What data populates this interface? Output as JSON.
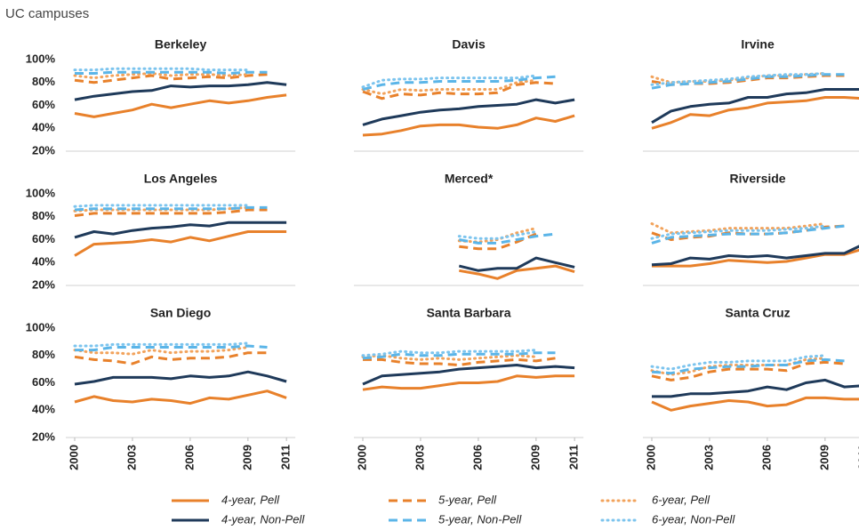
{
  "title": "UC campuses",
  "chart_data": {
    "type": "line",
    "x": [
      2000,
      2001,
      2002,
      2003,
      2004,
      2005,
      2006,
      2007,
      2008,
      2009,
      2010,
      2011
    ],
    "xticks": [
      2000,
      2003,
      2006,
      2009,
      2011
    ],
    "ylim": [
      20,
      100
    ],
    "yticks": [
      {
        "value": 20,
        "label": "20%"
      },
      {
        "value": 40,
        "label": "40%"
      },
      {
        "value": 60,
        "label": "60%"
      },
      {
        "value": 80,
        "label": "80%"
      },
      {
        "value": 100,
        "label": "100%"
      }
    ],
    "series": [
      {
        "name": "4-year, Pell",
        "color": "#e8812b",
        "dash": "solid"
      },
      {
        "name": "5-year, Pell",
        "color": "#e8812b",
        "dash": "dashed"
      },
      {
        "name": "6-year, Pell",
        "color": "#f2a35c",
        "dash": "dotted"
      },
      {
        "name": "4-year, Non-Pell",
        "color": "#1f3a5a",
        "dash": "solid"
      },
      {
        "name": "5-year, Non-Pell",
        "color": "#5bb5e8",
        "dash": "dashed"
      },
      {
        "name": "6-year, Non-Pell",
        "color": "#7cc4ee",
        "dash": "dotted"
      }
    ],
    "panels": [
      {
        "title": "Berkeley",
        "series_values": [
          [
            53,
            50,
            53,
            56,
            61,
            58,
            61,
            64,
            62,
            64,
            67,
            69
          ],
          [
            82,
            80,
            82,
            84,
            86,
            83,
            84,
            85,
            84,
            86,
            87,
            null
          ],
          [
            86,
            84,
            86,
            87,
            88,
            86,
            87,
            87,
            86,
            87,
            null,
            null
          ],
          [
            65,
            68,
            70,
            72,
            73,
            77,
            76,
            77,
            77,
            78,
            80,
            78
          ],
          [
            88,
            88,
            89,
            89,
            89,
            89,
            89,
            89,
            88,
            89,
            89,
            null
          ],
          [
            91,
            91,
            92,
            92,
            92,
            92,
            92,
            91,
            91,
            91,
            null,
            null
          ]
        ]
      },
      {
        "title": "Davis",
        "series_values": [
          [
            34,
            35,
            38,
            42,
            43,
            43,
            41,
            40,
            43,
            49,
            46,
            51
          ],
          [
            72,
            66,
            70,
            69,
            71,
            70,
            70,
            71,
            78,
            80,
            79,
            null
          ],
          [
            74,
            70,
            74,
            73,
            74,
            74,
            74,
            74,
            80,
            82,
            null,
            null
          ],
          [
            43,
            48,
            51,
            54,
            56,
            57,
            59,
            60,
            61,
            65,
            62,
            65
          ],
          [
            74,
            78,
            80,
            80,
            81,
            81,
            81,
            81,
            82,
            84,
            85,
            null
          ],
          [
            76,
            82,
            83,
            83,
            84,
            84,
            84,
            84,
            84,
            86,
            null,
            null
          ]
        ]
      },
      {
        "title": "Irvine",
        "series_values": [
          [
            40,
            45,
            52,
            51,
            56,
            58,
            62,
            63,
            64,
            67,
            67,
            66
          ],
          [
            81,
            78,
            79,
            79,
            80,
            82,
            84,
            84,
            85,
            86,
            86,
            null
          ],
          [
            85,
            80,
            81,
            81,
            82,
            84,
            86,
            86,
            87,
            88,
            null,
            null
          ],
          [
            45,
            55,
            59,
            61,
            62,
            67,
            67,
            70,
            71,
            74,
            74,
            74
          ],
          [
            75,
            78,
            79,
            80,
            81,
            83,
            85,
            85,
            86,
            87,
            87,
            null
          ],
          [
            78,
            80,
            81,
            82,
            83,
            85,
            86,
            87,
            87,
            88,
            null,
            null
          ]
        ]
      },
      {
        "title": "Los Angeles",
        "series_values": [
          [
            46,
            56,
            57,
            58,
            60,
            58,
            62,
            59,
            63,
            67,
            67,
            67
          ],
          [
            81,
            83,
            83,
            83,
            83,
            83,
            83,
            83,
            84,
            86,
            86,
            null
          ],
          [
            85,
            86,
            86,
            86,
            86,
            86,
            86,
            86,
            87,
            88,
            null,
            null
          ],
          [
            62,
            67,
            65,
            68,
            70,
            71,
            73,
            72,
            75,
            75,
            75,
            75
          ],
          [
            86,
            87,
            87,
            87,
            87,
            87,
            87,
            87,
            87,
            88,
            88,
            null
          ],
          [
            89,
            90,
            90,
            90,
            90,
            90,
            90,
            90,
            90,
            90,
            null,
            null
          ]
        ]
      },
      {
        "title": "Merced*",
        "series_values": [
          [
            null,
            null,
            null,
            null,
            null,
            33,
            30,
            26,
            33,
            35,
            37,
            32
          ],
          [
            null,
            null,
            null,
            null,
            null,
            54,
            52,
            52,
            58,
            65,
            null,
            null
          ],
          [
            null,
            null,
            null,
            null,
            null,
            59,
            58,
            60,
            66,
            70,
            null,
            null
          ],
          [
            null,
            null,
            null,
            null,
            null,
            37,
            33,
            35,
            35,
            44,
            40,
            36
          ],
          [
            null,
            null,
            null,
            null,
            null,
            60,
            57,
            57,
            60,
            63,
            65,
            null
          ],
          [
            null,
            null,
            null,
            null,
            null,
            63,
            61,
            61,
            64,
            67,
            null,
            null
          ]
        ]
      },
      {
        "title": "Riverside",
        "series_values": [
          [
            37,
            37,
            37,
            39,
            42,
            41,
            40,
            41,
            44,
            47,
            47,
            52
          ],
          [
            66,
            60,
            62,
            63,
            66,
            65,
            65,
            66,
            68,
            71,
            72,
            null
          ],
          [
            74,
            66,
            67,
            68,
            70,
            70,
            70,
            70,
            72,
            74,
            null,
            null
          ],
          [
            38,
            39,
            44,
            43,
            46,
            45,
            46,
            44,
            46,
            48,
            48,
            56
          ],
          [
            57,
            62,
            63,
            64,
            65,
            65,
            65,
            66,
            68,
            70,
            72,
            null
          ],
          [
            61,
            65,
            66,
            67,
            68,
            68,
            68,
            69,
            70,
            72,
            null,
            null
          ]
        ]
      },
      {
        "title": "San Diego",
        "series_values": [
          [
            46,
            50,
            47,
            46,
            48,
            47,
            45,
            49,
            48,
            51,
            54,
            49
          ],
          [
            79,
            77,
            76,
            74,
            79,
            77,
            78,
            78,
            79,
            82,
            82,
            null
          ],
          [
            84,
            82,
            82,
            81,
            84,
            82,
            83,
            83,
            84,
            86,
            null,
            null
          ],
          [
            59,
            61,
            64,
            64,
            64,
            63,
            65,
            64,
            65,
            68,
            65,
            61
          ],
          [
            84,
            84,
            86,
            86,
            86,
            86,
            86,
            86,
            86,
            87,
            86,
            null
          ],
          [
            87,
            87,
            88,
            88,
            88,
            88,
            88,
            88,
            88,
            89,
            null,
            null
          ]
        ]
      },
      {
        "title": "Santa Barbara",
        "series_values": [
          [
            55,
            57,
            56,
            56,
            58,
            60,
            60,
            61,
            65,
            64,
            65,
            65
          ],
          [
            77,
            77,
            75,
            74,
            74,
            73,
            75,
            76,
            77,
            76,
            78,
            null
          ],
          [
            79,
            80,
            78,
            77,
            78,
            77,
            78,
            79,
            80,
            79,
            null,
            null
          ],
          [
            59,
            65,
            66,
            67,
            68,
            70,
            71,
            72,
            73,
            71,
            72,
            71
          ],
          [
            78,
            79,
            81,
            80,
            80,
            81,
            81,
            81,
            81,
            82,
            82,
            null
          ],
          [
            80,
            81,
            83,
            82,
            82,
            83,
            83,
            83,
            83,
            84,
            null,
            null
          ]
        ]
      },
      {
        "title": "Santa Cruz",
        "series_values": [
          [
            46,
            40,
            43,
            45,
            47,
            46,
            43,
            44,
            49,
            49,
            48,
            48
          ],
          [
            65,
            62,
            64,
            68,
            70,
            70,
            70,
            69,
            74,
            75,
            74,
            null
          ],
          [
            69,
            66,
            68,
            72,
            73,
            73,
            73,
            73,
            77,
            78,
            null,
            null
          ],
          [
            50,
            50,
            52,
            52,
            53,
            54,
            57,
            55,
            60,
            62,
            57,
            58
          ],
          [
            68,
            67,
            70,
            71,
            72,
            72,
            73,
            73,
            76,
            77,
            76,
            null
          ],
          [
            72,
            70,
            73,
            75,
            75,
            76,
            76,
            76,
            79,
            80,
            null,
            null
          ]
        ]
      }
    ]
  }
}
